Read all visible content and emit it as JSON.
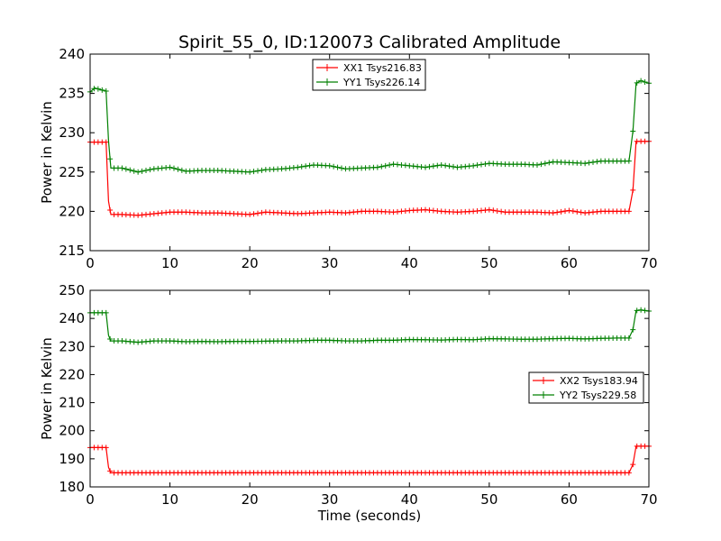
{
  "chart_data": {
    "title": "Spirit_55_0, ID:120073 Calibrated Amplitude",
    "xlabel": "Time (seconds)",
    "panels": [
      {
        "type": "line",
        "ylabel": "Power in Kelvin",
        "xlim": [
          0,
          70
        ],
        "ylim": [
          215,
          240
        ],
        "xticks": [
          "0",
          "10",
          "20",
          "30",
          "40",
          "50",
          "60",
          "70"
        ],
        "yticks": [
          "215",
          "220",
          "225",
          "230",
          "235",
          "240"
        ],
        "legend_position": "top-center",
        "series": [
          {
            "name": "XX1 Tsys216.83",
            "color": "#ff0000",
            "x": [
              0,
              1,
              2,
              2.3,
              2.6,
              4,
              6,
              8,
              10,
              12,
              14,
              16,
              18,
              20,
              22,
              24,
              26,
              28,
              30,
              32,
              34,
              36,
              38,
              40,
              42,
              44,
              46,
              48,
              50,
              52,
              54,
              56,
              58,
              60,
              62,
              64,
              66,
              67.5,
              68,
              68.4,
              69,
              70
            ],
            "y": [
              228.8,
              228.8,
              228.8,
              221.3,
              219.6,
              219.6,
              219.5,
              219.7,
              219.9,
              219.9,
              219.8,
              219.8,
              219.7,
              219.6,
              219.9,
              219.8,
              219.7,
              219.8,
              219.9,
              219.8,
              220.0,
              220.0,
              219.9,
              220.1,
              220.2,
              220.0,
              219.9,
              220.0,
              220.2,
              219.9,
              219.9,
              219.9,
              219.8,
              220.1,
              219.8,
              220.0,
              220.0,
              220.0,
              222.7,
              228.9,
              228.9,
              228.9
            ]
          },
          {
            "name": "YY1 Tsys226.14",
            "color": "#008000",
            "x": [
              0,
              0.6,
              1.2,
              2,
              2.3,
              2.6,
              4,
              6,
              8,
              10,
              12,
              14,
              16,
              18,
              20,
              22,
              24,
              26,
              28,
              30,
              32,
              34,
              36,
              38,
              40,
              42,
              44,
              46,
              48,
              50,
              52,
              54,
              56,
              58,
              60,
              62,
              64,
              66,
              67.5,
              68,
              68.4,
              69,
              70
            ],
            "y": [
              235.2,
              235.7,
              235.5,
              235.3,
              229.0,
              225.5,
              225.5,
              225.0,
              225.4,
              225.6,
              225.1,
              225.2,
              225.2,
              225.1,
              225.0,
              225.3,
              225.4,
              225.6,
              225.9,
              225.8,
              225.4,
              225.5,
              225.6,
              226.0,
              225.8,
              225.6,
              225.9,
              225.6,
              225.8,
              226.1,
              226.0,
              226.0,
              225.9,
              226.3,
              226.2,
              226.1,
              226.4,
              226.4,
              226.4,
              230.2,
              236.3,
              236.6,
              236.3
            ]
          }
        ]
      },
      {
        "type": "line",
        "ylabel": "Power in Kelvin",
        "xlim": [
          0,
          70
        ],
        "ylim": [
          180,
          250
        ],
        "xticks": [
          "0",
          "10",
          "20",
          "30",
          "40",
          "50",
          "60",
          "70"
        ],
        "yticks": [
          "180",
          "190",
          "200",
          "210",
          "220",
          "230",
          "240",
          "250"
        ],
        "legend_position": "center-right",
        "series": [
          {
            "name": "XX2 Tsys183.94",
            "color": "#ff0000",
            "x": [
              0,
              1,
              2,
              2.3,
              2.6,
              4,
              6,
              8,
              10,
              12,
              14,
              16,
              18,
              20,
              22,
              24,
              26,
              28,
              30,
              32,
              34,
              36,
              38,
              40,
              42,
              44,
              46,
              48,
              50,
              52,
              54,
              56,
              58,
              60,
              62,
              64,
              66,
              67.5,
              68,
              68.4,
              69,
              70
            ],
            "y": [
              194,
              194,
              194,
              187,
              185,
              185,
              185,
              185,
              185,
              185,
              185,
              185,
              185,
              185,
              185,
              185,
              185,
              185,
              185,
              185,
              185,
              185,
              185,
              185,
              185,
              185,
              185,
              185,
              185,
              185,
              185,
              185,
              185,
              185,
              185,
              185,
              185,
              185,
              188,
              194.5,
              194.5,
              194.5
            ]
          },
          {
            "name": "YY2 Tsys229.58",
            "color": "#008000",
            "x": [
              0,
              1,
              2,
              2.3,
              2.6,
              4,
              6,
              8,
              10,
              12,
              14,
              16,
              18,
              20,
              22,
              24,
              26,
              28,
              30,
              32,
              34,
              36,
              38,
              40,
              42,
              44,
              46,
              48,
              50,
              52,
              54,
              56,
              58,
              60,
              62,
              64,
              66,
              67.5,
              68,
              68.4,
              69,
              70
            ],
            "y": [
              242,
              242,
              242,
              234,
              232,
              232,
              231.5,
              232,
              232,
              231.7,
              231.8,
              231.7,
              231.8,
              231.8,
              231.9,
              232,
              232,
              232.2,
              232.2,
              232,
              232,
              232.2,
              232.2,
              232.5,
              232.4,
              232.3,
              232.5,
              232.4,
              232.8,
              232.7,
              232.6,
              232.6,
              232.8,
              232.9,
              232.7,
              232.9,
              233,
              233,
              236,
              242.8,
              243,
              242.6
            ]
          }
        ]
      }
    ]
  }
}
